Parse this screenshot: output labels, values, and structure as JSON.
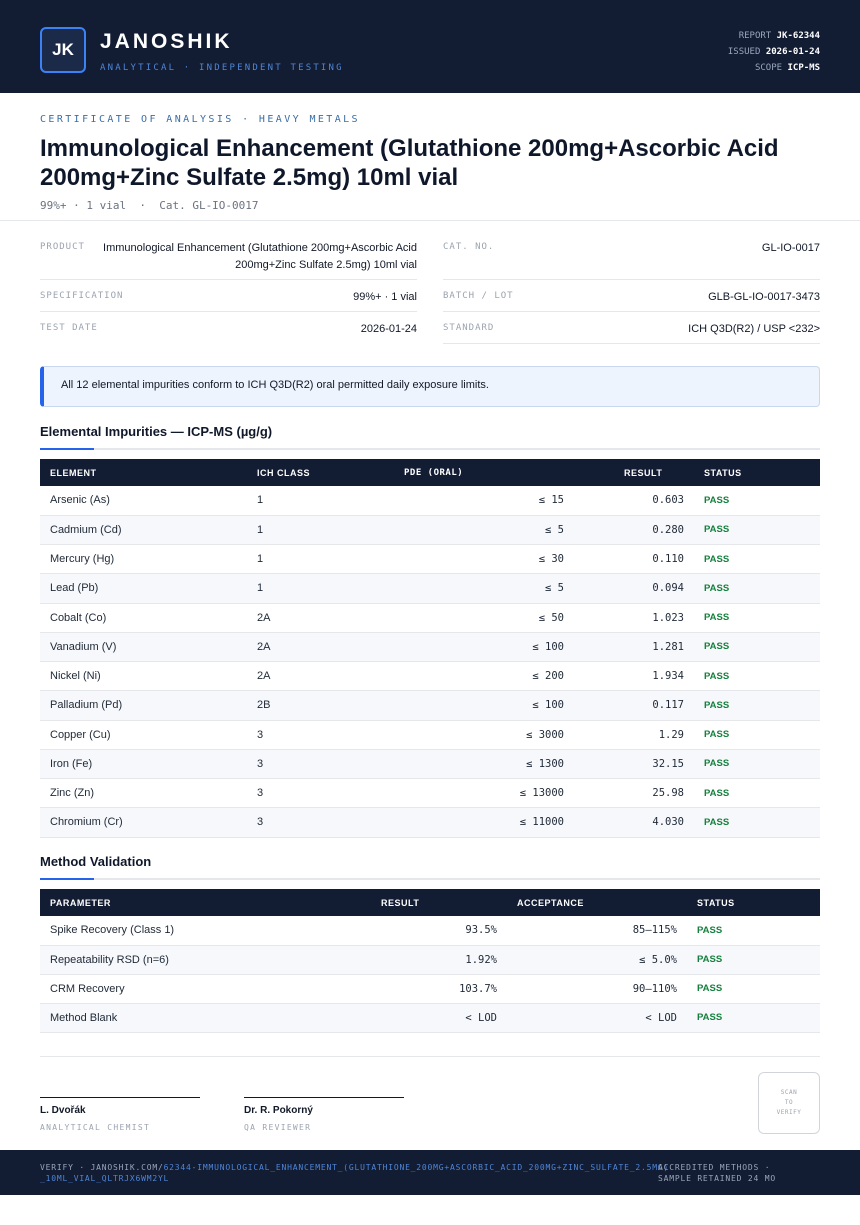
{
  "header": {
    "logo": "JK",
    "brand": "JANOSHIK",
    "tagline": "ANALYTICAL · INDEPENDENT TESTING",
    "report_label": "REPORT",
    "report_value": "JK-62344",
    "issued_label": "ISSUED",
    "issued_value": "2026-01-24",
    "scope_label": "SCOPE",
    "scope_value": "ICP-MS"
  },
  "document": {
    "cert_label": "CERTIFICATE OF ANALYSIS · HEAVY METALS",
    "title": "Immunological Enhancement (Glutathione 200mg+Ascorbic Acid 200mg+Zinc Sulfate 2.5mg) 10ml vial",
    "subline": "99%+ · 1 vial  ·  Cat. GL-IO-0017"
  },
  "info": {
    "product_label": "PRODUCT",
    "product_value": "Immunological Enhancement (Glutathione 200mg+Ascorbic Acid 200mg+Zinc Sulfate 2.5mg) 10ml vial",
    "catno_label": "CAT. NO.",
    "catno_value": "GL-IO-0017",
    "spec_label": "SPECIFICATION",
    "spec_value": "99%+ · 1 vial",
    "batch_label": "BATCH / LOT",
    "batch_value": "GLB-GL-IO-0017-3473",
    "date_label": "TEST DATE",
    "date_value": "2026-01-24",
    "standard_label": "STANDARD",
    "standard_value": "ICH Q3D(R2) / USP <232>"
  },
  "notice": "All 12 elemental impurities conform to ICH Q3D(R2) oral permitted daily exposure limits.",
  "impurities": {
    "title": "Elemental Impurities — ICP-MS (µg/g)",
    "headers": [
      "ELEMENT",
      "ICH CLASS",
      "PDE (ORAL)",
      "RESULT",
      "STATUS"
    ],
    "rows": [
      {
        "element": "Arsenic (As)",
        "class": "1",
        "pde": "≤ 15",
        "result": "0.603",
        "status": "PASS"
      },
      {
        "element": "Cadmium (Cd)",
        "class": "1",
        "pde": "≤ 5",
        "result": "0.280",
        "status": "PASS"
      },
      {
        "element": "Mercury (Hg)",
        "class": "1",
        "pde": "≤ 30",
        "result": "0.110",
        "status": "PASS"
      },
      {
        "element": "Lead (Pb)",
        "class": "1",
        "pde": "≤ 5",
        "result": "0.094",
        "status": "PASS"
      },
      {
        "element": "Cobalt (Co)",
        "class": "2A",
        "pde": "≤ 50",
        "result": "1.023",
        "status": "PASS"
      },
      {
        "element": "Vanadium (V)",
        "class": "2A",
        "pde": "≤ 100",
        "result": "1.281",
        "status": "PASS"
      },
      {
        "element": "Nickel (Ni)",
        "class": "2A",
        "pde": "≤ 200",
        "result": "1.934",
        "status": "PASS"
      },
      {
        "element": "Palladium (Pd)",
        "class": "2B",
        "pde": "≤ 100",
        "result": "0.117",
        "status": "PASS"
      },
      {
        "element": "Copper (Cu)",
        "class": "3",
        "pde": "≤ 3000",
        "result": "1.29",
        "status": "PASS"
      },
      {
        "element": "Iron (Fe)",
        "class": "3",
        "pde": "≤ 1300",
        "result": "32.15",
        "status": "PASS"
      },
      {
        "element": "Zinc (Zn)",
        "class": "3",
        "pde": "≤ 13000",
        "result": "25.98",
        "status": "PASS"
      },
      {
        "element": "Chromium (Cr)",
        "class": "3",
        "pde": "≤ 11000",
        "result": "4.030",
        "status": "PASS"
      }
    ]
  },
  "validation": {
    "title": "Method Validation",
    "headers": [
      "PARAMETER",
      "RESULT",
      "ACCEPTANCE",
      "STATUS"
    ],
    "rows": [
      {
        "parameter": "Spike Recovery (Class 1)",
        "result": "93.5%",
        "acceptance": "85–115%",
        "status": "PASS"
      },
      {
        "parameter": "Repeatability RSD (n=6)",
        "result": "1.92%",
        "acceptance": "≤ 5.0%",
        "status": "PASS"
      },
      {
        "parameter": "CRM Recovery",
        "result": "103.7%",
        "acceptance": "90–110%",
        "status": "PASS"
      },
      {
        "parameter": "Method Blank",
        "result": "< LOD",
        "acceptance": "< LOD",
        "status": "PASS"
      }
    ]
  },
  "signatures": [
    {
      "name": "L. Dvořák",
      "role": "ANALYTICAL CHEMIST"
    },
    {
      "name": "Dr. R. Pokorný",
      "role": "QA REVIEWER"
    }
  ],
  "qr": {
    "line1": "SCAN",
    "line2": "TO",
    "line3": "VERIFY"
  },
  "footer": {
    "verify_prefix": "VERIFY · JANOSHIK.COM/",
    "verify_link": "62344-IMMUNOLOGICAL_ENHANCEMENT_(GLUTATHIONE_200MG+ASCORBIC_ACID_200MG+ZINC_SULFATE_2.5MG)_10ML_VIAL_QLTRJX6WM2YL",
    "right_line1": "ACCREDITED METHODS ·",
    "right_line2": "SAMPLE RETAINED 24 MO"
  },
  "colors": {
    "navy": "#121c33",
    "accent": "#2563eb",
    "pass": "#15803d"
  }
}
